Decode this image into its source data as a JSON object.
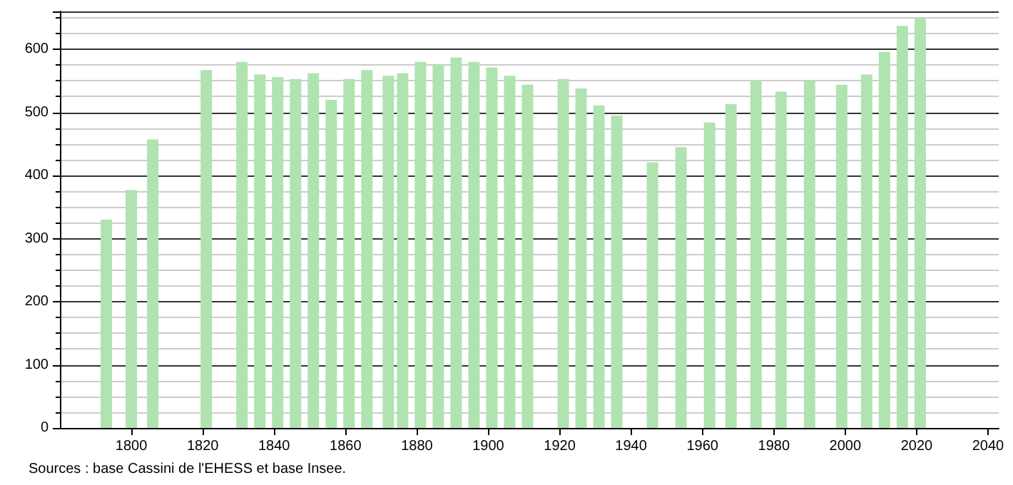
{
  "chart_data": {
    "type": "bar",
    "x": [
      1793,
      1800,
      1806,
      1821,
      1831,
      1836,
      1841,
      1846,
      1851,
      1856,
      1861,
      1866,
      1872,
      1876,
      1881,
      1886,
      1891,
      1896,
      1901,
      1906,
      1911,
      1921,
      1926,
      1931,
      1936,
      1946,
      1954,
      1962,
      1968,
      1975,
      1982,
      1990,
      1999,
      2006,
      2011,
      2016,
      2021
    ],
    "values": [
      330,
      377,
      457,
      567,
      580,
      560,
      556,
      553,
      562,
      520,
      553,
      567,
      558,
      562,
      580,
      576,
      587,
      580,
      571,
      558,
      544,
      553,
      538,
      511,
      495,
      421,
      445,
      484,
      513,
      550,
      533,
      550,
      544,
      560,
      596,
      637,
      650
    ],
    "color": "#b0e3b0",
    "xlim": [
      1780,
      2043
    ],
    "xticks": [
      1800,
      1820,
      1840,
      1860,
      1880,
      1900,
      1920,
      1940,
      1960,
      1980,
      2000,
      2020,
      2040
    ],
    "ylim": [
      0,
      660
    ],
    "yticks": [
      0,
      100,
      200,
      300,
      400,
      500,
      600
    ],
    "grid": "y",
    "annotations": [
      "Sources : base Cassini de l'EHESS et base Insee."
    ]
  }
}
